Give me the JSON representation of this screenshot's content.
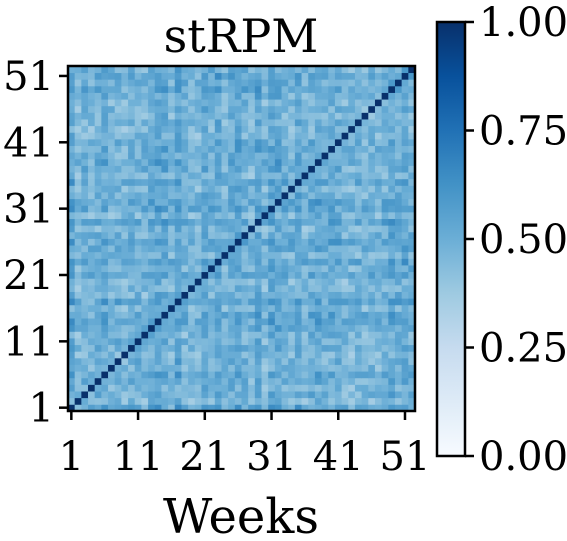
{
  "chart_data": {
    "type": "heatmap",
    "title": "stRPM",
    "xlabel": "Weeks",
    "ylabel": "",
    "size": 52,
    "x_ticks": [
      "1",
      "11",
      "21",
      "31",
      "41",
      "51"
    ],
    "y_ticks": [
      "1",
      "11",
      "21",
      "31",
      "41",
      "51"
    ],
    "colorbar": {
      "min": 0.0,
      "max": 1.0,
      "ticks": [
        "0.00",
        "0.25",
        "0.50",
        "0.75",
        "1.00"
      ],
      "colormap": "Blues",
      "color_min": "#f7fbff",
      "color_max": "#08306b"
    },
    "diagonal_value": 1.0,
    "off_diagonal_typical_range": [
      0.25,
      0.75
    ]
  }
}
